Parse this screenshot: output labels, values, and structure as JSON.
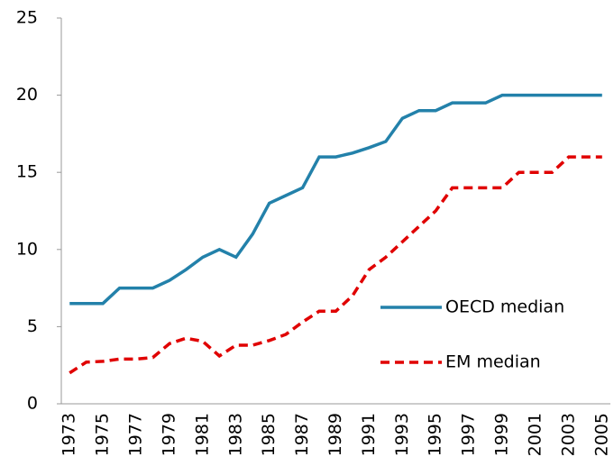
{
  "chart_data": {
    "type": "line",
    "categories": [
      "1973",
      null,
      "1975",
      null,
      "1977",
      null,
      "1979",
      null,
      "1981",
      null,
      "1983",
      null,
      "1985",
      null,
      "1987",
      null,
      "1989",
      null,
      "1991",
      null,
      "1993",
      null,
      "1995",
      null,
      "1997",
      null,
      "1999",
      null,
      "2001",
      null,
      "2003",
      null,
      "2005"
    ],
    "series": [
      {
        "name": "OECD median",
        "color": "#2381aa",
        "dash": false,
        "values": [
          6.5,
          6.5,
          6.5,
          7.5,
          7.5,
          7.5,
          8,
          8.7,
          9.5,
          10,
          9.5,
          11,
          13,
          13.5,
          14,
          16,
          16,
          16.25,
          16.6,
          17,
          18.5,
          19,
          19,
          19.5,
          19.5,
          19.5,
          20,
          20,
          20,
          20,
          20,
          20,
          20
        ]
      },
      {
        "name": "EM median",
        "color": "#e00000",
        "dash": true,
        "values": [
          2,
          2.7,
          2.75,
          2.9,
          2.9,
          3,
          3.9,
          4.25,
          4.05,
          3.1,
          3.8,
          3.8,
          4.1,
          4.5,
          5.3,
          6,
          6,
          7,
          8.7,
          9.5,
          10.5,
          11.5,
          12.5,
          14,
          14,
          14,
          14,
          15,
          15,
          15,
          16,
          16,
          16
        ]
      }
    ],
    "ylim": [
      0,
      25
    ],
    "yticks": [
      0,
      5,
      10,
      15,
      20,
      25
    ],
    "grid": false,
    "legend": "right"
  }
}
